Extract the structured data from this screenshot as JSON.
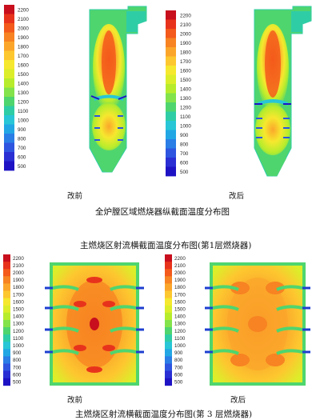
{
  "legend": {
    "values": [
      "2200",
      "2100",
      "2000",
      "1900",
      "1800",
      "1700",
      "1600",
      "1500",
      "1400",
      "1300",
      "1200",
      "1100",
      "1000",
      "900",
      "800",
      "700",
      "600",
      "500"
    ],
    "colors": [
      "#c80f1d",
      "#e8331c",
      "#f35a1b",
      "#f78322",
      "#fba62b",
      "#fdc72f",
      "#f6e82e",
      "#dcee2a",
      "#b7ec2c",
      "#83e34b",
      "#4fd56e",
      "#2fcda6",
      "#28c6d6",
      "#22a7e4",
      "#2a7ee6",
      "#2e55e0",
      "#2a2fd4",
      "#1e13c4"
    ]
  },
  "section1": {
    "left_label": "改前",
    "right_label": "改后",
    "caption": "全炉膛区域燃烧器纵截面温度分布图"
  },
  "section2": {
    "caption": "主燃烧区射流横截面温度分布图(第1层燃烧器)"
  },
  "section3": {
    "left_label": "改前",
    "right_label": "改后",
    "caption": "主燃烧区射流横截面温度分布图(第 3 层燃烧器)"
  }
}
